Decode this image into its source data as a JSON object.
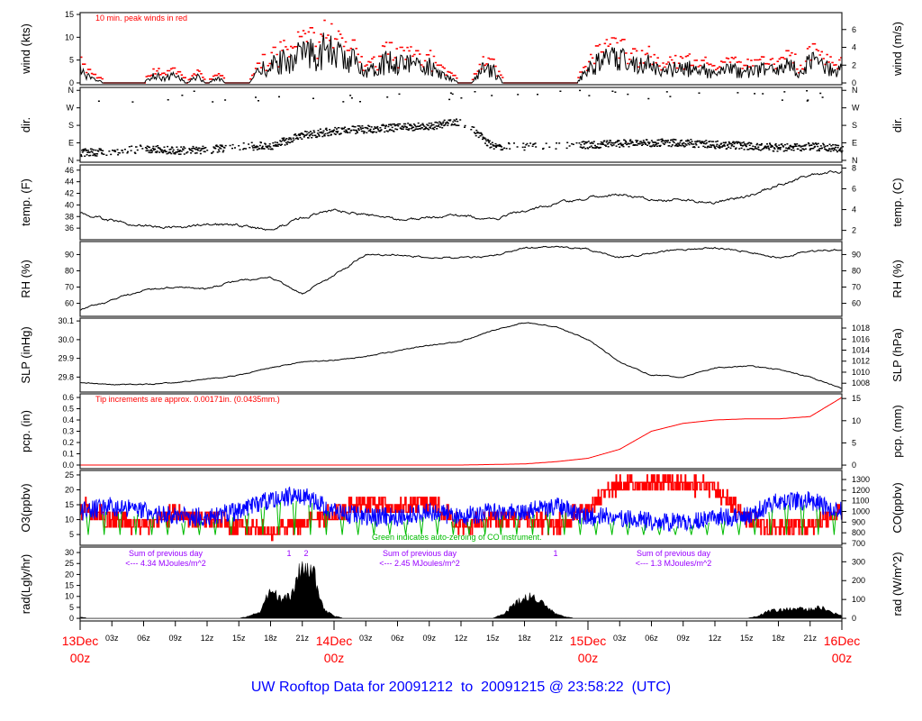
{
  "chart_data": {
    "type": "line",
    "title": "UW Rooftop Data for 20091212  to  20091215 @ 23:58:22  (UTC)",
    "colors": {
      "title": "#0000ff",
      "peak_wind": "#ff0000",
      "precip": "#ff0000",
      "o3": "#ff0000",
      "co": "#0000ff",
      "auto_zero": "#00bb00",
      "radiation_note": "#9900ff",
      "day_label": "#ff0000"
    },
    "x_axis": {
      "start": "2009-12-13T00:00Z",
      "end": "2009-12-16T00:00Z",
      "hour_ticks": [
        "03z",
        "06z",
        "09z",
        "12z",
        "15z",
        "18z",
        "21z"
      ],
      "day_labels": [
        {
          "day": "13Dec",
          "hour": "00z"
        },
        {
          "day": "14Dec",
          "hour": "00z"
        },
        {
          "day": "15Dec",
          "hour": "00z"
        },
        {
          "day": "16Dec",
          "hour": "00z"
        }
      ]
    },
    "panels": [
      {
        "id": "wind",
        "ylabel": "wind (kts)",
        "ylabel_right": "wind (m/s)",
        "ylim": [
          -0.4,
          15.4
        ],
        "ylim_right": [
          -0.2,
          7.9
        ],
        "left_ticks": [
          "0",
          "5",
          "10",
          "15"
        ],
        "right_ticks": [
          "0",
          "2",
          "4",
          "6"
        ],
        "annotation": "10 min. peak winds in red",
        "series": [
          {
            "name": "wind speed",
            "step_hours": 1,
            "values": [
              3,
              1,
              0.3,
              0,
              0,
              0,
              0,
              2,
              1,
              2,
              0,
              1.5,
              0,
              1,
              0,
              0,
              0,
              3,
              4,
              5,
              6,
              6.5,
              7,
              8,
              7,
              6,
              5,
              3,
              4,
              5,
              5,
              5,
              4,
              4,
              2,
              1,
              0,
              0,
              3,
              3,
              0,
              0,
              0,
              0,
              0,
              0,
              0,
              0,
              4,
              5,
              5.5,
              6,
              5,
              5,
              4,
              3,
              3,
              4,
              3,
              3,
              2,
              3,
              3,
              3,
              3,
              3,
              3,
              4,
              3,
              5,
              5,
              3,
              3
            ]
          }
        ]
      },
      {
        "id": "direction",
        "ylabel": "dir.",
        "ylabel_right": "dir.",
        "ylim": [
          -9.5,
          375
        ],
        "ylim_right": [
          -9.5,
          375
        ],
        "left_ticks": [
          "N",
          "E",
          "S",
          "W",
          "N"
        ],
        "right_ticks": [
          "N",
          "E",
          "S",
          "W",
          "N"
        ],
        "tick_values": [
          0,
          90,
          180,
          270,
          360
        ],
        "series": [
          {
            "name": "wind direction (deg)",
            "step_hours": 3,
            "values": [
              40,
              45,
              60,
              50,
              55,
              70,
              75,
              130,
              150,
              160,
              170,
              175,
              200,
              70,
              70,
              75,
              80,
              85,
              90,
              90,
              80,
              75,
              65,
              70,
              60
            ]
          }
        ]
      },
      {
        "id": "temperature",
        "ylabel": "temp. (F)",
        "ylabel_right": "temp. (C)",
        "ylim": [
          34,
          46.9
        ],
        "ylim_right": [
          1.1,
          8.3
        ],
        "left_ticks": [
          "36",
          "38",
          "40",
          "42",
          "44",
          "46"
        ],
        "right_ticks": [
          "2",
          "4",
          "6",
          "8"
        ],
        "series": [
          {
            "name": "temperature (F)",
            "step_hours": 3,
            "values": [
              38.7,
              37.2,
              36.4,
              36.1,
              36.6,
              36.5,
              35.6,
              37.8,
              39.1,
              38.3,
              37.4,
              37.8,
              38.2,
              37.5,
              39.0,
              40.2,
              41.3,
              41.8,
              41.0,
              40.8,
              40.3,
              41.5,
              43.5,
              45.2,
              45.8
            ]
          }
        ]
      },
      {
        "id": "rh",
        "ylabel": "RH (%)",
        "ylabel_right": "RH (%)",
        "ylim": [
          52,
          98
        ],
        "ylim_right": [
          52,
          98
        ],
        "left_ticks": [
          "60",
          "70",
          "80",
          "90"
        ],
        "right_ticks": [
          "60",
          "70",
          "80",
          "90"
        ],
        "series": [
          {
            "name": "relative humidity",
            "step_hours": 3,
            "values": [
              56,
              62,
              68,
              70,
              69,
              74,
              76,
              66,
              77,
              90,
              90,
              88,
              88,
              89,
              94,
              95,
              93,
              88,
              91,
              93,
              94,
              92,
              88,
              92,
              93
            ]
          }
        ]
      },
      {
        "id": "slp",
        "ylabel": "SLP (inHg)",
        "ylabel_right": "SLP (hPa)",
        "ylim": [
          29.72,
          30.115
        ],
        "ylim_right": [
          1006.4,
          1019.8
        ],
        "left_ticks": [
          "29.8",
          "29.9",
          "30.0",
          "30.1"
        ],
        "right_ticks": [
          "1008",
          "1010",
          "1012",
          "1014",
          "1016",
          "1018"
        ],
        "series": [
          {
            "name": "sea level pressure (inHg)",
            "step_hours": 3,
            "values": [
              29.77,
              29.76,
              29.76,
              29.77,
              29.79,
              29.81,
              29.85,
              29.88,
              29.89,
              29.91,
              29.94,
              29.97,
              29.99,
              30.05,
              30.09,
              30.07,
              30.0,
              29.88,
              29.81,
              29.8,
              29.85,
              29.86,
              29.84,
              29.8,
              29.74
            ]
          }
        ]
      },
      {
        "id": "precip",
        "ylabel": "pcp. (in)",
        "ylabel_right": "pcp. (mm)",
        "ylim": [
          -0.032,
          0.632
        ],
        "ylim_right": [
          -0.8,
          16.05
        ],
        "left_ticks": [
          "0.0",
          "0.1",
          "0.2",
          "0.3",
          "0.4",
          "0.5",
          "0.6"
        ],
        "right_ticks": [
          "0",
          "5",
          "10",
          "15"
        ],
        "annotation": "Tip increments are approx. 0.00171in. (0.0435mm.)",
        "series": [
          {
            "name": "accumulated precipitation (in)",
            "step_hours": 3,
            "values": [
              0,
              0,
              0,
              0,
              0,
              0,
              0,
              0,
              0,
              0,
              0,
              0,
              0,
              0.005,
              0.01,
              0.03,
              0.06,
              0.14,
              0.3,
              0.37,
              0.4,
              0.41,
              0.41,
              0.43,
              0.6
            ]
          }
        ]
      },
      {
        "id": "chem",
        "ylabel": "O3(ppbv)",
        "ylabel_right": "CO(ppbv)",
        "ylim": [
          1.4,
          26.5
        ],
        "ylim_right": [
          683,
          1385
        ],
        "left_ticks": [
          "5",
          "10",
          "15",
          "20",
          "25"
        ],
        "right_ticks": [
          "700",
          "800",
          "900",
          "1000",
          "1100",
          "1200",
          "1300"
        ],
        "annotation": "Green indicates auto-zeroing of CO instrument.",
        "series": [
          {
            "name": "O3",
            "step_hours": 3,
            "values": [
              14,
              10,
              8,
              12,
              10,
              8,
              6,
              9,
              12,
              16,
              14,
              16,
              8,
              10,
              10,
              8,
              14,
              22,
              22,
              22,
              21,
              10,
              7,
              8,
              12
            ]
          },
          {
            "name": "CO",
            "step_hours": 3,
            "values": [
              1000,
              1050,
              1000,
              950,
              950,
              1000,
              1120,
              1150,
              1000,
              950,
              950,
              1000,
              950,
              1000,
              1000,
              1050,
              950,
              950,
              900,
              900,
              950,
              950,
              1100,
              1100,
              1000
            ]
          }
        ]
      },
      {
        "id": "radiation",
        "ylabel": "rad(Lgly/hr)",
        "ylabel_right": "rad (W/m^2)",
        "ylim": [
          -1.2,
          32.5
        ],
        "ylim_right": [
          -14,
          378
        ],
        "left_ticks": [
          "0",
          "5",
          "10",
          "15",
          "20",
          "25",
          "30"
        ],
        "right_ticks": [
          "0",
          "100",
          "200",
          "300"
        ],
        "series": [
          {
            "name": "solar radiation (Lgly/hr)",
            "step_hours": 1,
            "values": [
              0.5,
              0,
              0,
              0,
              0,
              0,
              0,
              0,
              0,
              0,
              0,
              0,
              0,
              0,
              0,
              0,
              1,
              3,
              13,
              9,
              10,
              25,
              22,
              4,
              1,
              0,
              0,
              0,
              0,
              0,
              0,
              0,
              0,
              0,
              0,
              0,
              0,
              0,
              0,
              0,
              2,
              6,
              9,
              10,
              5,
              2,
              0.5,
              0,
              0,
              0,
              0,
              0,
              0,
              0,
              0,
              0,
              0,
              0,
              0,
              0,
              0,
              0,
              0,
              0,
              1,
              3,
              4,
              4,
              5,
              4,
              5,
              3,
              1
            ]
          }
        ],
        "daily_sums": [
          {
            "label": "Sum of previous day",
            "value": "<--- 4.34 MJoules/m^2"
          },
          {
            "label": "Sum of previous day",
            "value": "<--- 2.45 MJoules/m^2"
          },
          {
            "label": "Sum of previous day",
            "value": "<--- 1.3 MJoules/m^2"
          }
        ],
        "markers": [
          "1",
          "2",
          "1"
        ]
      }
    ]
  }
}
